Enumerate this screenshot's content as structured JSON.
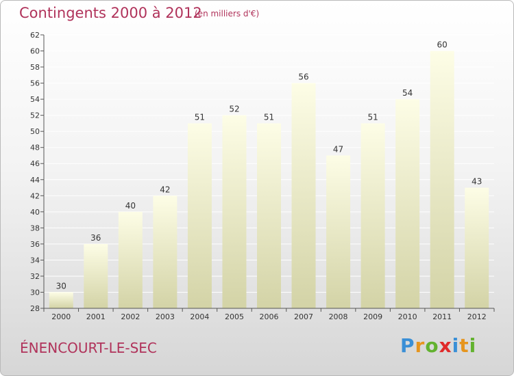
{
  "header": {
    "title": "Contingents 2000 à 2012",
    "subtitle": "(en milliers d'€)"
  },
  "footer": {
    "commune": "ÉNENCOURT-LE-SEC",
    "logo": {
      "letters": [
        "P",
        "r",
        "o",
        "x",
        "i",
        "t",
        "i"
      ],
      "colors": [
        "#3a8fd6",
        "#e6951e",
        "#62b22f",
        "#e02a2a",
        "#3a8fd6",
        "#e6951e",
        "#62b22f"
      ]
    }
  },
  "chart_data": {
    "type": "bar",
    "title": "Contingents 2000 à 2012",
    "subtitle": "(en milliers d'€)",
    "xlabel": "",
    "ylabel": "",
    "categories": [
      "2000",
      "2001",
      "2002",
      "2003",
      "2004",
      "2005",
      "2006",
      "2007",
      "2008",
      "2009",
      "2010",
      "2011",
      "2012"
    ],
    "values": [
      30,
      36,
      40,
      42,
      51,
      52,
      51,
      56,
      47,
      51,
      54,
      60,
      43
    ],
    "data_labels": [
      "30",
      "36",
      "40",
      "42",
      "51",
      "52",
      "51",
      "56",
      "47",
      "51",
      "54",
      "60",
      "43"
    ],
    "ylim": [
      28,
      62
    ],
    "yticks": [
      28,
      30,
      32,
      34,
      36,
      38,
      40,
      42,
      44,
      46,
      48,
      50,
      52,
      54,
      56,
      58,
      60,
      62
    ],
    "ytick_labels": [
      "28",
      "30",
      "32",
      "34",
      "36",
      "38",
      "40",
      "42",
      "44",
      "46",
      "48",
      "50",
      "52",
      "54",
      "56",
      "58",
      "60",
      "62"
    ],
    "grid": true,
    "legend": "none",
    "colors": {
      "bar_top": "#fdfde6",
      "bar_bottom": "#d3d3a6",
      "grid": "#ffffff",
      "text": "#333333",
      "accent": "#b0325a"
    }
  }
}
